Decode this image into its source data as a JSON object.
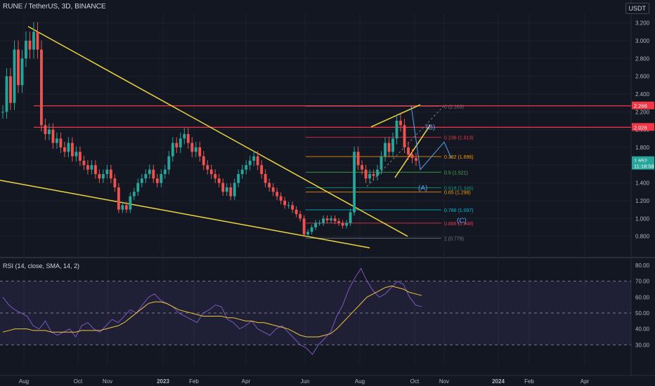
{
  "header": {
    "symbol": "RUNE / TetherUS, 3D, BINANCE",
    "currency": "USDT"
  },
  "rsi_header": "RSI (14, close, SMA, 14, 2)",
  "colors": {
    "bg": "#131722",
    "up": "#26a69a",
    "down": "#ef5350",
    "trend": "#f0d63c",
    "red_level": "#f23645",
    "rsi": "#7e57c2",
    "rsi_ma": "#f0c43c",
    "grid": "#1e222d"
  },
  "chart_data": [
    {
      "type": "candlestick",
      "title": "RUNE / TetherUS, 3D, BINANCE",
      "ylim": [
        0.6,
        3.3
      ],
      "y_ticks": [
        "3.200",
        "3.000",
        "2.800",
        "2.600",
        "2.400",
        "2.200",
        "2.000",
        "1.800",
        "1.600",
        "1.400",
        "1.200",
        "1.000",
        "0.800"
      ],
      "x_ticks": [
        "Aug",
        "Oct",
        "Nov",
        "2023",
        "Feb",
        "Apr",
        "Jun",
        "Aug",
        "Oct",
        "Nov",
        "2024",
        "Feb",
        "Apr"
      ],
      "price_labels": [
        {
          "text": "2.268",
          "value": 2.268,
          "color": "#f23645"
        },
        {
          "text": "2.026",
          "value": 2.026,
          "color": "#f23645"
        },
        {
          "text": "1.652",
          "value": 1.652,
          "color": "#26a69a"
        },
        {
          "text": "11:18:58",
          "value": 1.59,
          "color": "#26a69a"
        }
      ],
      "horizontal_levels": [
        2.268,
        2.026
      ],
      "fibonacci": [
        {
          "label": "0 (2.263)",
          "value": 2.263,
          "color": "#787b86"
        },
        {
          "label": "0.236 (1.913)",
          "value": 1.913,
          "color": "#f23645"
        },
        {
          "label": "0.382 (1.696)",
          "value": 1.696,
          "color": "#ff9800"
        },
        {
          "label": "0.5 (1.521)",
          "value": 1.521,
          "color": "#4caf50"
        },
        {
          "label": "0.618 (1.346)",
          "value": 1.346,
          "color": "#089981"
        },
        {
          "label": "0.65 (1.298)",
          "value": 1.298,
          "color": "#ff9800"
        },
        {
          "label": "0.786 (1.097)",
          "value": 1.097,
          "color": "#00bcd4"
        },
        {
          "label": "0.886 (0.948)",
          "value": 0.948,
          "color": "#f23645"
        },
        {
          "label": "1 (0.779)",
          "value": 0.779,
          "color": "#787b86"
        }
      ],
      "wave_labels": [
        "(B)",
        "(A)",
        "(C)"
      ],
      "closes": [
        2.2,
        2.6,
        2.3,
        2.9,
        2.5,
        2.8,
        3.0,
        2.9,
        3.1,
        2.9,
        2.05,
        1.95,
        2.0,
        1.85,
        1.9,
        1.8,
        1.75,
        1.85,
        1.7,
        1.75,
        1.65,
        1.6,
        1.55,
        1.6,
        1.5,
        1.45,
        1.5,
        1.55,
        1.45,
        1.35,
        1.1,
        1.15,
        1.1,
        1.25,
        1.3,
        1.4,
        1.45,
        1.5,
        1.55,
        1.45,
        1.4,
        1.5,
        1.55,
        1.7,
        1.85,
        1.8,
        1.9,
        1.95,
        1.85,
        1.75,
        1.8,
        1.7,
        1.6,
        1.55,
        1.5,
        1.45,
        1.4,
        1.3,
        1.35,
        1.25,
        1.4,
        1.5,
        1.55,
        1.6,
        1.65,
        1.7,
        1.6,
        1.5,
        1.4,
        1.35,
        1.3,
        1.25,
        1.2,
        1.15,
        1.15,
        1.1,
        1.05,
        1.0,
        0.82,
        0.85,
        0.9,
        0.95,
        0.95,
        1.0,
        0.98,
        1.0,
        0.97,
        0.95,
        0.92,
        0.95,
        1.07,
        1.75,
        1.6,
        1.55,
        1.45,
        1.5,
        1.48,
        1.55,
        1.7,
        1.85,
        1.75,
        1.9,
        2.1,
        2.05,
        1.8,
        1.72,
        1.68,
        1.65
      ],
      "rsi_ylim": [
        20,
        80
      ],
      "rsi_ticks": [
        "80.00",
        "70.00",
        "60.00",
        "50.00",
        "40.00",
        "30.00"
      ],
      "rsi_band": [
        30,
        70
      ],
      "rsi": [
        60,
        55,
        52,
        50,
        48,
        42,
        40,
        45,
        38,
        36,
        38,
        40,
        35,
        42,
        44,
        40,
        38,
        42,
        46,
        44,
        48,
        52,
        50,
        55,
        60,
        62,
        58,
        56,
        54,
        50,
        48,
        46,
        44,
        50,
        52,
        55,
        54,
        46,
        44,
        40,
        42,
        45,
        40,
        38,
        36,
        40,
        42,
        38,
        34,
        30,
        28,
        24,
        30,
        34,
        38,
        48,
        55,
        65,
        72,
        78,
        70,
        64,
        60,
        62,
        66,
        70,
        68,
        60,
        55,
        54
      ],
      "rsi_ma": [
        38,
        39,
        40,
        40,
        40,
        39,
        39,
        39,
        38,
        38,
        38,
        38,
        38,
        39,
        39,
        39,
        39,
        40,
        41,
        42,
        44,
        47,
        50,
        53,
        56,
        57,
        57,
        56,
        54,
        52,
        51,
        50,
        49,
        48,
        48,
        48,
        48,
        47,
        47,
        46,
        45,
        45,
        44,
        44,
        43,
        42,
        41,
        40,
        38,
        36,
        35,
        35,
        35,
        36,
        37,
        40,
        44,
        48,
        52,
        56,
        60,
        62,
        64,
        66,
        67,
        66,
        65,
        63,
        62,
        61
      ]
    }
  ]
}
